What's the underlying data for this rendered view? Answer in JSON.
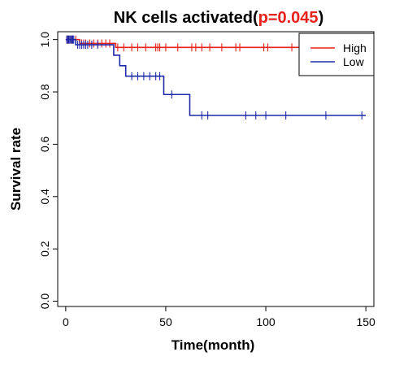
{
  "chart_data": {
    "type": "line",
    "subtype": "kaplan-meier",
    "title": {
      "prefix": "NK cells activated(",
      "p_value": "p=0.045",
      "suffix": ")"
    },
    "xlabel": "Time(month)",
    "ylabel": "Survival rate",
    "xlim": [
      -4,
      154
    ],
    "ylim": [
      -0.02,
      1.03
    ],
    "x_ticks": [
      0,
      50,
      100,
      150
    ],
    "x_tick_labels": [
      "0",
      "50",
      "100",
      "150"
    ],
    "y_ticks": [
      0.0,
      0.2,
      0.4,
      0.6,
      0.8,
      1.0
    ],
    "y_tick_labels": [
      "0.0",
      "0.2",
      "0.4",
      "0.6",
      "0.8",
      "1.0"
    ],
    "grid": false,
    "legend_position": "top-right",
    "series": [
      {
        "name": "High",
        "color": "#e8211a",
        "steps": [
          {
            "x": 0,
            "y": 1.0
          },
          {
            "x": 7,
            "y": 0.985
          },
          {
            "x": 25,
            "y": 0.97
          },
          {
            "x": 150,
            "y": 0.97
          }
        ],
        "censored": [
          {
            "x": 1,
            "y": 1.0
          },
          {
            "x": 3,
            "y": 1.0
          },
          {
            "x": 5,
            "y": 1.0
          },
          {
            "x": 8,
            "y": 0.985
          },
          {
            "x": 9,
            "y": 0.985
          },
          {
            "x": 10,
            "y": 0.985
          },
          {
            "x": 12,
            "y": 0.985
          },
          {
            "x": 14,
            "y": 0.985
          },
          {
            "x": 16,
            "y": 0.985
          },
          {
            "x": 18,
            "y": 0.985
          },
          {
            "x": 20,
            "y": 0.985
          },
          {
            "x": 22,
            "y": 0.985
          },
          {
            "x": 26,
            "y": 0.97
          },
          {
            "x": 29,
            "y": 0.97
          },
          {
            "x": 33,
            "y": 0.97
          },
          {
            "x": 36,
            "y": 0.97
          },
          {
            "x": 40,
            "y": 0.97
          },
          {
            "x": 45,
            "y": 0.97
          },
          {
            "x": 46,
            "y": 0.97
          },
          {
            "x": 47,
            "y": 0.97
          },
          {
            "x": 50,
            "y": 0.97
          },
          {
            "x": 56,
            "y": 0.97
          },
          {
            "x": 63,
            "y": 0.97
          },
          {
            "x": 65,
            "y": 0.97
          },
          {
            "x": 68,
            "y": 0.97
          },
          {
            "x": 72,
            "y": 0.97
          },
          {
            "x": 78,
            "y": 0.97
          },
          {
            "x": 85,
            "y": 0.97
          },
          {
            "x": 87,
            "y": 0.97
          },
          {
            "x": 99,
            "y": 0.97
          },
          {
            "x": 101,
            "y": 0.97
          },
          {
            "x": 113,
            "y": 0.97
          },
          {
            "x": 123,
            "y": 0.97
          },
          {
            "x": 131,
            "y": 0.97
          },
          {
            "x": 140,
            "y": 0.97
          },
          {
            "x": 145,
            "y": 0.97
          }
        ]
      },
      {
        "name": "Low",
        "color": "#1f28a8",
        "steps": [
          {
            "x": 0,
            "y": 1.0
          },
          {
            "x": 5,
            "y": 0.98
          },
          {
            "x": 24,
            "y": 0.94
          },
          {
            "x": 27,
            "y": 0.9
          },
          {
            "x": 30,
            "y": 0.86
          },
          {
            "x": 49,
            "y": 0.79
          },
          {
            "x": 62,
            "y": 0.71
          },
          {
            "x": 150,
            "y": 0.71
          }
        ],
        "censored": [
          {
            "x": 0.5,
            "y": 1.0
          },
          {
            "x": 1,
            "y": 1.0
          },
          {
            "x": 1.5,
            "y": 1.0
          },
          {
            "x": 2,
            "y": 1.0
          },
          {
            "x": 2.5,
            "y": 1.0
          },
          {
            "x": 3,
            "y": 1.0
          },
          {
            "x": 3.5,
            "y": 1.0
          },
          {
            "x": 4,
            "y": 1.0
          },
          {
            "x": 6,
            "y": 0.98
          },
          {
            "x": 7,
            "y": 0.98
          },
          {
            "x": 8,
            "y": 0.98
          },
          {
            "x": 9,
            "y": 0.98
          },
          {
            "x": 10,
            "y": 0.98
          },
          {
            "x": 11,
            "y": 0.98
          },
          {
            "x": 13,
            "y": 0.98
          },
          {
            "x": 16,
            "y": 0.98
          },
          {
            "x": 33,
            "y": 0.86
          },
          {
            "x": 36,
            "y": 0.86
          },
          {
            "x": 39,
            "y": 0.86
          },
          {
            "x": 42,
            "y": 0.86
          },
          {
            "x": 45,
            "y": 0.86
          },
          {
            "x": 47,
            "y": 0.86
          },
          {
            "x": 53,
            "y": 0.79
          },
          {
            "x": 68,
            "y": 0.71
          },
          {
            "x": 71,
            "y": 0.71
          },
          {
            "x": 90,
            "y": 0.71
          },
          {
            "x": 95,
            "y": 0.71
          },
          {
            "x": 100,
            "y": 0.71
          },
          {
            "x": 110,
            "y": 0.71
          },
          {
            "x": 130,
            "y": 0.71
          },
          {
            "x": 148,
            "y": 0.71
          }
        ]
      }
    ]
  }
}
